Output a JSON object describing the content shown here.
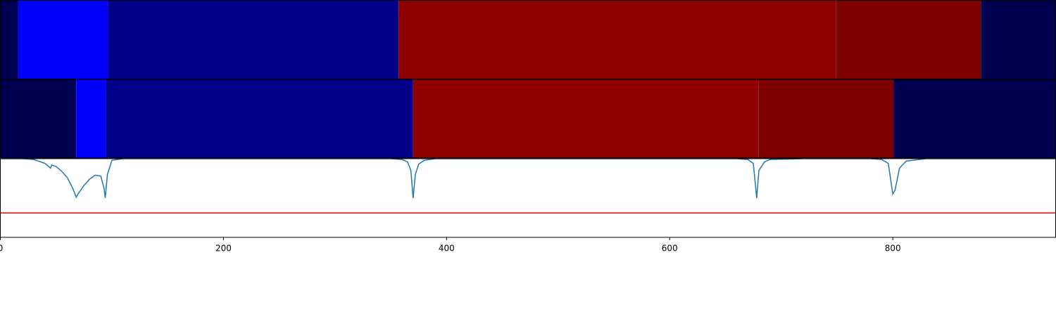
{
  "chart_data": [
    {
      "type": "segments",
      "xlim": [
        0,
        946
      ],
      "segments": [
        {
          "start": 0,
          "end": 15.8,
          "color": "#000050"
        },
        {
          "start": 15.8,
          "end": 96.5,
          "color": "#0000ff"
        },
        {
          "start": 96.5,
          "end": 357,
          "color": "#000088"
        },
        {
          "start": 357,
          "end": 749,
          "color": "#900000"
        },
        {
          "start": 749,
          "end": 879,
          "color": "#7f0000"
        },
        {
          "start": 879,
          "end": 946,
          "color": "#000050"
        }
      ]
    },
    {
      "type": "segments",
      "xlim": [
        0,
        946
      ],
      "segments": [
        {
          "start": 0,
          "end": 68,
          "color": "#000050"
        },
        {
          "start": 68,
          "end": 94.6,
          "color": "#0000ff"
        },
        {
          "start": 94.6,
          "end": 370,
          "color": "#000088"
        },
        {
          "start": 370,
          "end": 679.5,
          "color": "#900000"
        },
        {
          "start": 679.5,
          "end": 800.6,
          "color": "#7f0000"
        },
        {
          "start": 800.6,
          "end": 946,
          "color": "#000050"
        }
      ]
    },
    {
      "type": "line",
      "xlim": [
        0,
        946
      ],
      "ylim": [
        0,
        1
      ],
      "color": "#1f77b4",
      "xticks": [
        0,
        200,
        400,
        600,
        800
      ],
      "threshold": 0.31,
      "threshold_color": "#e00000",
      "x": [
        0,
        20,
        30,
        40,
        45,
        46,
        50,
        55,
        60,
        65,
        68,
        70,
        75,
        80,
        85,
        90,
        93,
        94,
        96,
        100,
        110,
        200,
        300,
        350,
        360,
        365,
        368,
        370,
        372,
        375,
        380,
        390,
        450,
        600,
        660,
        670,
        675,
        678,
        680,
        685,
        690,
        720,
        760,
        780,
        790,
        796,
        800,
        802,
        806,
        812,
        830,
        900,
        946
      ],
      "values": [
        1,
        1,
        0.99,
        0.94,
        0.88,
        0.92,
        0.9,
        0.84,
        0.76,
        0.62,
        0.51,
        0.56,
        0.66,
        0.74,
        0.79,
        0.78,
        0.62,
        0.5,
        0.8,
        0.98,
        1,
        1,
        1,
        1,
        0.99,
        0.96,
        0.85,
        0.5,
        0.8,
        0.93,
        0.98,
        1,
        1,
        1,
        1,
        0.99,
        0.94,
        0.5,
        0.85,
        0.96,
        0.99,
        1,
        1,
        1,
        0.99,
        0.94,
        0.55,
        0.6,
        0.88,
        0.97,
        1,
        1,
        1
      ]
    }
  ]
}
